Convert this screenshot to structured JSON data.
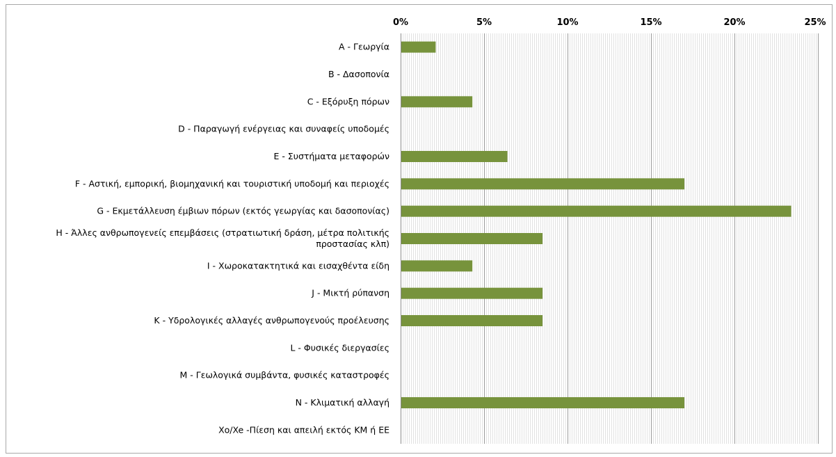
{
  "chart_data": {
    "type": "bar",
    "orientation": "horizontal",
    "x_axis_position": "top",
    "grid": true,
    "bar_color": "#77933c",
    "xlim": [
      0,
      25
    ],
    "x_ticks": [
      0,
      5,
      10,
      15,
      20,
      25
    ],
    "x_tick_labels": [
      "0%",
      "5%",
      "10%",
      "15%",
      "20%",
      "25%"
    ],
    "categories": [
      [
        "A - Γεωργία"
      ],
      [
        "B - Δασοπονία"
      ],
      [
        "C - Εξόρυξη πόρων"
      ],
      [
        "D - Παραγωγή ενέργειας και συναφείς υποδομές"
      ],
      [
        "E - Συστήματα μεταφορών"
      ],
      [
        "F - Αστική, εμπορική, βιομηχανική και τουριστική υποδομή και περιοχές"
      ],
      [
        "G - Εκμετάλλευση έμβιων πόρων (εκτός γεωργίας και δασοπονίας)"
      ],
      [
        "H - Άλλες ανθρωπογενείς επεμβάσεις (στρατιωτική δράση, μέτρα πολιτικής",
        "προστασίας κλπ)"
      ],
      [
        "I - Χωροκατακτητικά και εισαχθέντα είδη"
      ],
      [
        "J - Μικτή ρύπανση"
      ],
      [
        "K - Υδρολογικές αλλαγές ανθρωπογενούς προέλευσης"
      ],
      [
        "L - Φυσικές διεργασίες"
      ],
      [
        "M - Γεωλογικά συμβάντα, φυσικές καταστροφές"
      ],
      [
        "N - Κλιματική αλλαγή"
      ],
      [
        "Xo/Xe -Πίεση και απειλή εκτός ΚΜ ή ΕΕ"
      ]
    ],
    "values": [
      2.1,
      0,
      4.3,
      0,
      6.4,
      17.0,
      23.4,
      8.5,
      4.3,
      8.5,
      8.5,
      0,
      0,
      17.0,
      0
    ]
  }
}
